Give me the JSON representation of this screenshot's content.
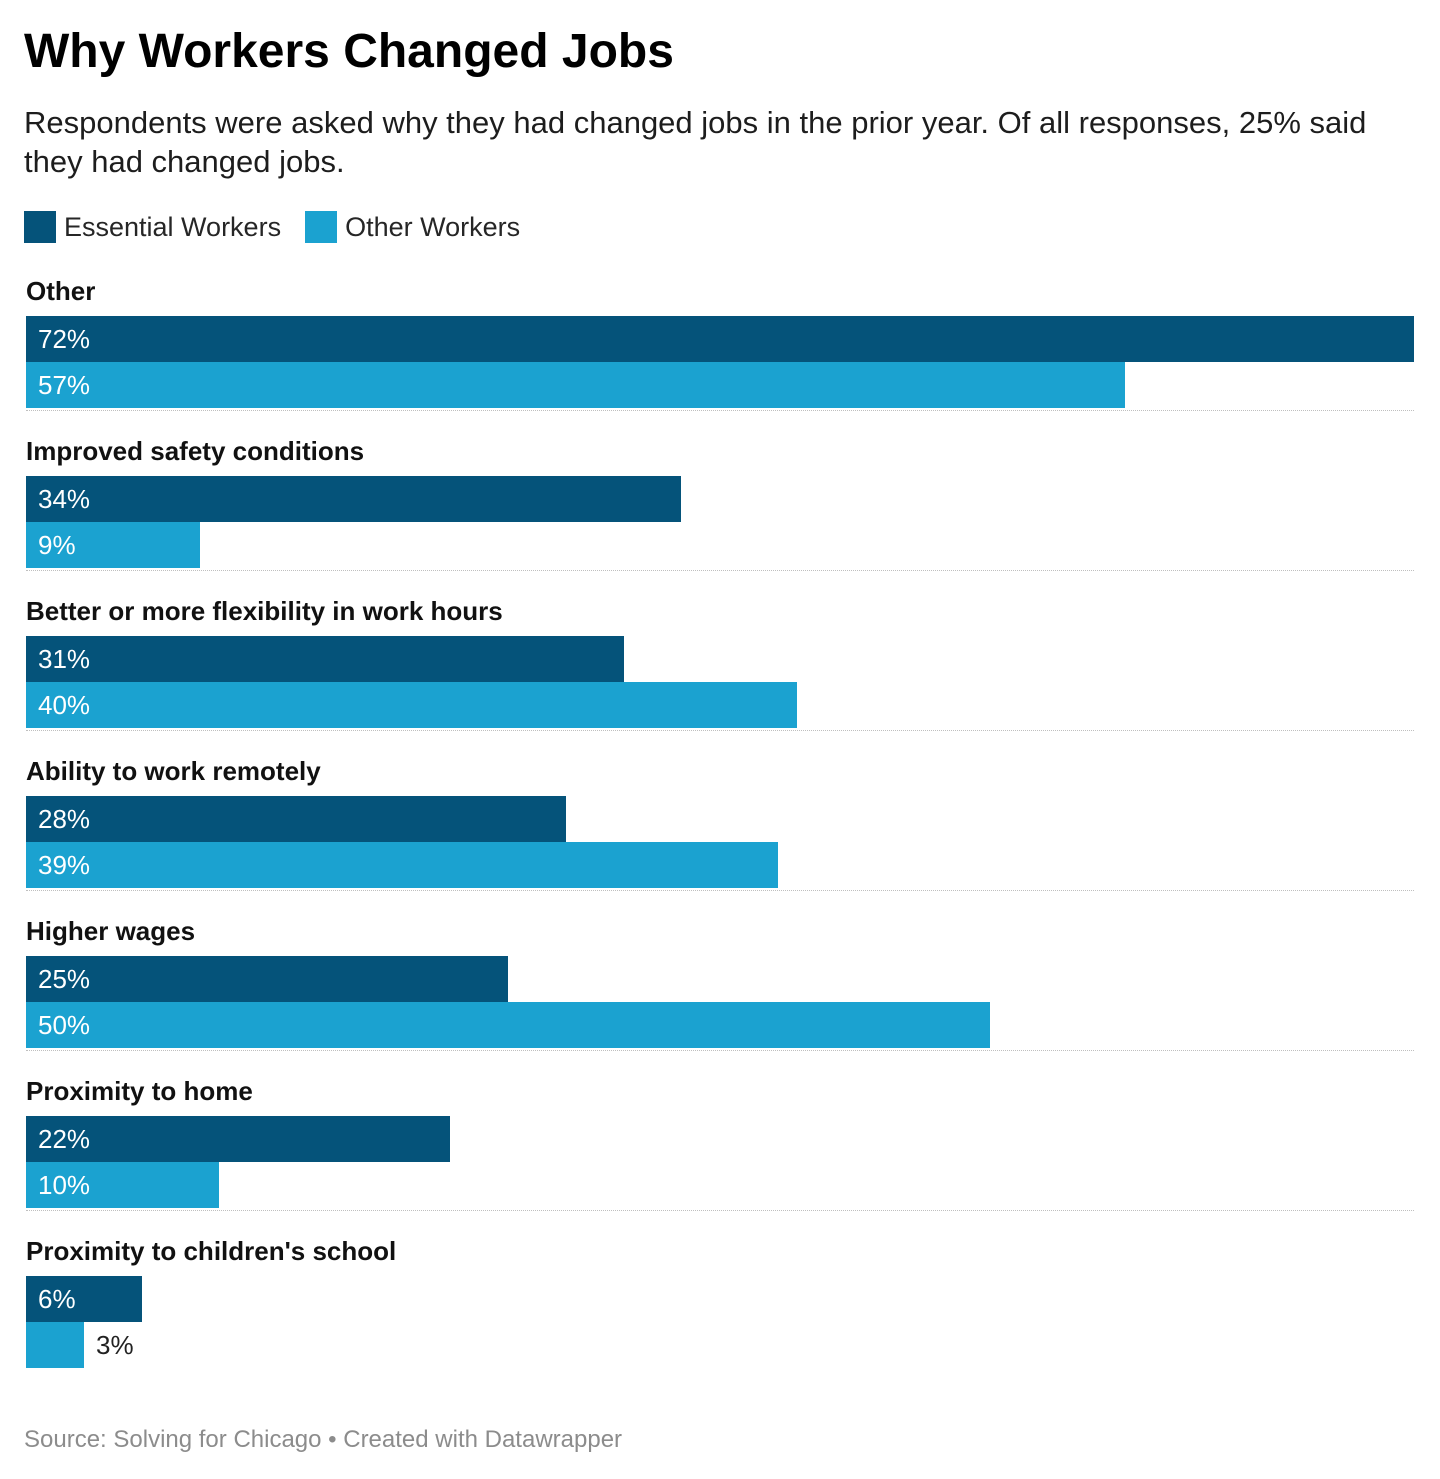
{
  "chart": {
    "title": "Why Workers Changed Jobs",
    "subtitle": "Respondents were asked why they had changed jobs in the prior year. Of all responses, 25% said they had changed jobs.",
    "source": "Source: Solving for Chicago • Created with Datawrapper"
  },
  "colors": {
    "essential": "#05537a",
    "other": "#1ba2d0"
  },
  "legend": [
    {
      "label": "Essential Workers",
      "color_key": "essential"
    },
    {
      "label": "Other Workers",
      "color_key": "other"
    }
  ],
  "chart_data": {
    "type": "bar",
    "orientation": "horizontal",
    "title": "Why Workers Changed Jobs",
    "subtitle": "Respondents were asked why they had changed jobs in the prior year. Of all responses, 25% said they had changed jobs.",
    "categories": [
      "Other",
      "Improved safety conditions",
      "Better or more flexibility in work hours",
      "Ability to work remotely",
      "Higher wages",
      "Proximity to home",
      "Proximity to children's school"
    ],
    "series": [
      {
        "name": "Essential Workers",
        "values": [
          72,
          34,
          31,
          28,
          25,
          22,
          6
        ],
        "labels": [
          "72%",
          "34%",
          "31%",
          "28%",
          "25%",
          "22%",
          "6%"
        ]
      },
      {
        "name": "Other Workers",
        "values": [
          57,
          9,
          40,
          39,
          50,
          10,
          3
        ],
        "labels": [
          "57%",
          "9%",
          "40%",
          "39%",
          "50%",
          "10%",
          "3%"
        ]
      }
    ],
    "unit": "%",
    "xlim": [
      0,
      72
    ],
    "grid": false,
    "legend_position": "top-left"
  }
}
